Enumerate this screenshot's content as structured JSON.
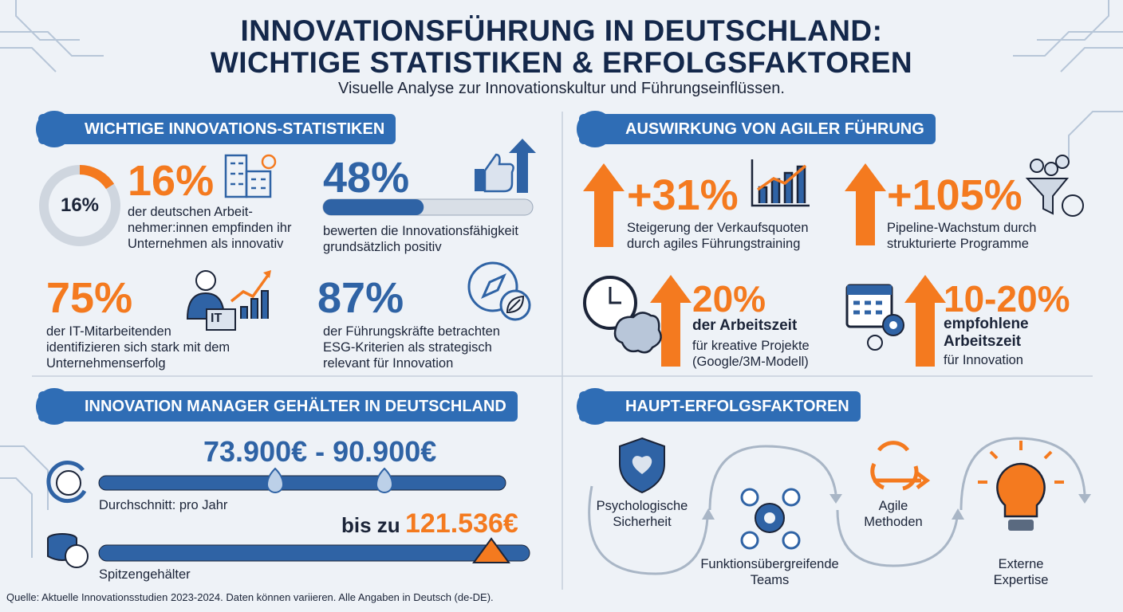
{
  "header": {
    "title_lines": [
      "INNOVATIONSFÜHRUNG IN DEUTSCHLAND:",
      "WICHTIGE STATISTIKEN & ERFOLGSFAKTOREN"
    ],
    "subtitle": "Visuelle Analyse zur Innovationskultur und Führungseinflüssen."
  },
  "stats": {
    "title": "WICHTIGE INNOVATIONS-STATISTIKEN",
    "items": [
      {
        "value": "16%",
        "ring_label": "16%",
        "lines": [
          "der deutschen Arbeit-",
          "nehmer:innen empfinden ihr",
          "Unternehmen als innovativ"
        ]
      },
      {
        "value": "48%",
        "lines": [
          "bewerten die Innovationsfähigkeit",
          "grundsätzlich positiv"
        ]
      },
      {
        "value": "75%",
        "icon_label": "IT",
        "lines": [
          "der IT-Mitarbeitenden",
          "identifizieren sich stark mit dem",
          "Unternehmenserfolg"
        ]
      },
      {
        "value": "87%",
        "lines": [
          "der Führungskräfte betrachten",
          "ESG-Kriterien als strategisch",
          "relevant für Innovation"
        ]
      }
    ]
  },
  "agile": {
    "title": "AUSWIRKUNG VON AGILER FÜHRUNG",
    "items": [
      {
        "value": "+31%",
        "lines": [
          "Steigerung der Verkaufsquoten",
          "durch agiles Führungstraining"
        ]
      },
      {
        "value": "+105%",
        "lines": [
          "Pipeline-Wachstum durch",
          "strukturierte Programme"
        ]
      },
      {
        "value": "20%",
        "bold_lines": [
          "der Arbeitszeit"
        ],
        "lines": [
          "für kreative Projekte",
          "(Google/3M-Modell)"
        ]
      },
      {
        "value": "10-20%",
        "bold_lines": [
          "empfohlene",
          "Arbeitszeit"
        ],
        "lines": [
          "für Innovation"
        ]
      }
    ]
  },
  "salary": {
    "title": "INNOVATION MANAGER GEHÄLTER IN DEUTSCHLAND",
    "range": "73.900€ - 90.900€",
    "range_caption": "Durchschnitt: pro Jahr",
    "top_prefix": "bis zu",
    "top_value": "121.536€",
    "top_caption": "Spitzengehälter"
  },
  "factors": {
    "title": "HAUPT-ERFOLGSFAKTOREN",
    "items": [
      {
        "lines": [
          "Psychologische",
          "Sicherheit"
        ]
      },
      {
        "lines": [
          "Funktionsübergreifende",
          "Teams"
        ]
      },
      {
        "lines": [
          "Agile",
          "Methoden"
        ]
      },
      {
        "lines": [
          "Externe",
          "Expertise"
        ]
      }
    ]
  },
  "footer": "Quelle: Aktuelle Innovationsstudien 2023-2024. Daten können variieren. Alle Angaben in Deutsch (de-DE)."
}
